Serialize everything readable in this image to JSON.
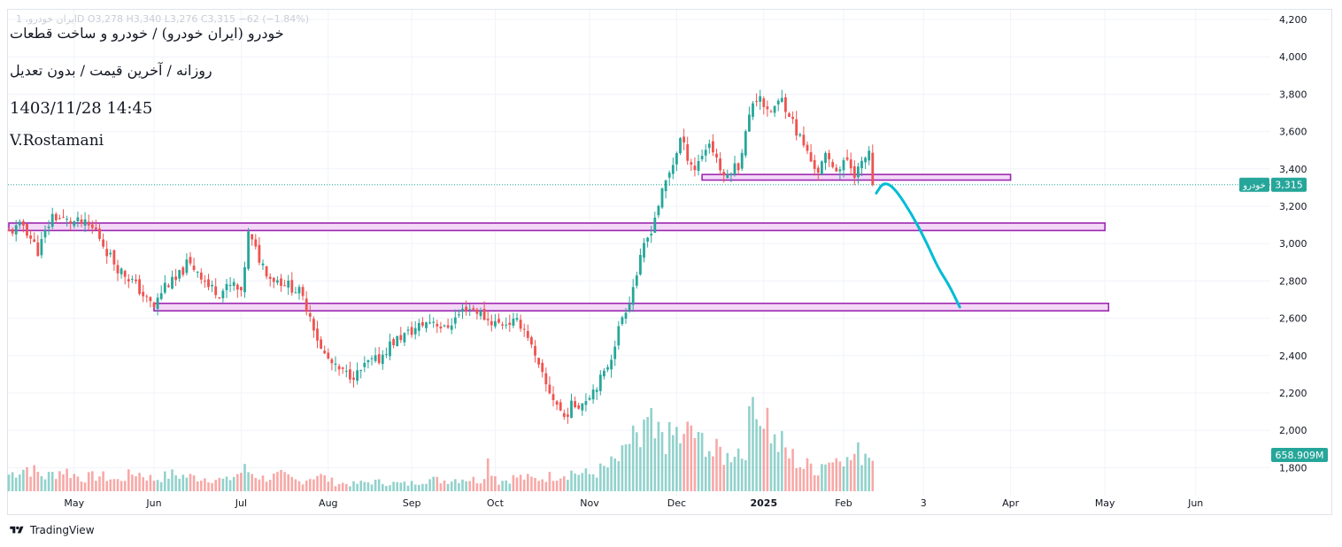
{
  "header": {
    "ohlc_text": "ایران خودرو، 1D  O3,278  H3,340  L3,276  C3,315  −62 (−1.84%)",
    "symbol_title": "خودرو (ایران خودرو) / خودرو و ساخت قطعات",
    "subtitle": "روزانه / آخرین قیمت / بدون تعدیل",
    "datetime": "1403/11/28 14:45",
    "author": "V.Rostamani"
  },
  "branding": {
    "name": "TradingView"
  },
  "colors": {
    "up": "#26a69a",
    "down": "#ef5350",
    "zone_border": "#9c27b0",
    "zone_fill": "#f3d9f7",
    "projection": "#00bcd4",
    "price_tag": "#26a69a"
  },
  "chart_data": {
    "type": "candlestick",
    "title": "خودرو (ایران خودرو) / خودرو و ساخت قطعات",
    "timeframe": "روزانه",
    "y_range": [
      1730,
      4250
    ],
    "y_ticks": [
      1800,
      2000,
      2200,
      2400,
      2600,
      2800,
      3000,
      3200,
      3400,
      3600,
      3800,
      4000,
      4200
    ],
    "y_tick_labels": [
      "1,800",
      "2,000",
      "2,200",
      "2,400",
      "2,600",
      "2,800",
      "3,000",
      "3,200",
      "3,400",
      "3,600",
      "3,800",
      "4,000",
      "4,200"
    ],
    "x_labels": [
      "May",
      "Jun",
      "Jul",
      "Aug",
      "Sep",
      "Oct",
      "Nov",
      "Dec",
      "2025",
      "Feb",
      "3",
      "Apr",
      "May",
      "Jun"
    ],
    "x_label_bar_index": [
      18,
      40,
      64,
      88,
      111,
      134,
      160,
      184,
      208,
      230,
      252,
      276,
      302,
      327
    ],
    "bold_x_label": "2025",
    "last_price": {
      "value": 3315,
      "label": "3,315",
      "symbol": "خودرو"
    },
    "volume_last": {
      "label": "658.909M"
    },
    "close_path": [
      [
        0,
        3060
      ],
      [
        4,
        3100
      ],
      [
        8,
        2960
      ],
      [
        12,
        3150
      ],
      [
        16,
        3120
      ],
      [
        20,
        3110
      ],
      [
        24,
        3070
      ],
      [
        27,
        2960
      ],
      [
        30,
        2870
      ],
      [
        34,
        2800
      ],
      [
        38,
        2700
      ],
      [
        40,
        2660
      ],
      [
        43,
        2780
      ],
      [
        46,
        2800
      ],
      [
        49,
        2890
      ],
      [
        52,
        2860
      ],
      [
        55,
        2770
      ],
      [
        58,
        2740
      ],
      [
        62,
        2780
      ],
      [
        64,
        2720
      ],
      [
        66,
        3050
      ],
      [
        69,
        2920
      ],
      [
        72,
        2820
      ],
      [
        76,
        2790
      ],
      [
        80,
        2740
      ],
      [
        83,
        2620
      ],
      [
        86,
        2430
      ],
      [
        90,
        2330
      ],
      [
        93,
        2300
      ],
      [
        96,
        2300
      ],
      [
        99,
        2360
      ],
      [
        102,
        2380
      ],
      [
        105,
        2460
      ],
      [
        108,
        2500
      ],
      [
        111,
        2530
      ],
      [
        114,
        2570
      ],
      [
        117,
        2590
      ],
      [
        120,
        2540
      ],
      [
        123,
        2600
      ],
      [
        126,
        2660
      ],
      [
        129,
        2640
      ],
      [
        132,
        2590
      ],
      [
        135,
        2570
      ],
      [
        138,
        2580
      ],
      [
        141,
        2570
      ],
      [
        143,
        2510
      ],
      [
        145,
        2380
      ],
      [
        148,
        2240
      ],
      [
        151,
        2140
      ],
      [
        153,
        2070
      ],
      [
        155,
        2130
      ],
      [
        158,
        2150
      ],
      [
        161,
        2220
      ],
      [
        164,
        2300
      ],
      [
        166,
        2400
      ],
      [
        169,
        2610
      ],
      [
        171,
        2700
      ],
      [
        173,
        2840
      ],
      [
        175,
        2980
      ],
      [
        177,
        3080
      ],
      [
        179,
        3210
      ],
      [
        181,
        3330
      ],
      [
        183,
        3430
      ],
      [
        185,
        3560
      ],
      [
        187,
        3470
      ],
      [
        189,
        3400
      ],
      [
        191,
        3480
      ],
      [
        193,
        3540
      ],
      [
        195,
        3460
      ],
      [
        197,
        3340
      ],
      [
        199,
        3400
      ],
      [
        201,
        3420
      ],
      [
        203,
        3590
      ],
      [
        205,
        3760
      ],
      [
        207,
        3800
      ],
      [
        209,
        3690
      ],
      [
        211,
        3730
      ],
      [
        213,
        3770
      ],
      [
        215,
        3700
      ],
      [
        217,
        3600
      ],
      [
        219,
        3530
      ],
      [
        221,
        3440
      ],
      [
        223,
        3390
      ],
      [
        225,
        3460
      ],
      [
        227,
        3420
      ],
      [
        229,
        3400
      ],
      [
        231,
        3450
      ],
      [
        233,
        3380
      ],
      [
        235,
        3420
      ],
      [
        237,
        3500
      ],
      [
        238,
        3315
      ]
    ],
    "volume_path": [
      [
        0,
        14
      ],
      [
        5,
        20
      ],
      [
        10,
        12
      ],
      [
        15,
        18
      ],
      [
        20,
        11
      ],
      [
        25,
        13
      ],
      [
        30,
        9
      ],
      [
        35,
        16
      ],
      [
        40,
        10
      ],
      [
        45,
        14
      ],
      [
        50,
        12
      ],
      [
        55,
        11
      ],
      [
        60,
        9
      ],
      [
        65,
        18
      ],
      [
        70,
        11
      ],
      [
        75,
        13
      ],
      [
        80,
        8
      ],
      [
        85,
        14
      ],
      [
        90,
        7
      ],
      [
        95,
        6
      ],
      [
        100,
        8
      ],
      [
        105,
        7
      ],
      [
        110,
        6
      ],
      [
        115,
        10
      ],
      [
        120,
        9
      ],
      [
        125,
        11
      ],
      [
        130,
        9
      ],
      [
        132,
        25
      ],
      [
        135,
        8
      ],
      [
        140,
        12
      ],
      [
        145,
        10
      ],
      [
        150,
        13
      ],
      [
        155,
        16
      ],
      [
        160,
        14
      ],
      [
        165,
        20
      ],
      [
        170,
        30
      ],
      [
        172,
        55
      ],
      [
        174,
        30
      ],
      [
        176,
        60
      ],
      [
        178,
        40
      ],
      [
        180,
        52
      ],
      [
        182,
        42
      ],
      [
        184,
        48
      ],
      [
        186,
        40
      ],
      [
        188,
        55
      ],
      [
        190,
        38
      ],
      [
        192,
        45
      ],
      [
        194,
        30
      ],
      [
        196,
        33
      ],
      [
        198,
        28
      ],
      [
        200,
        38
      ],
      [
        202,
        32
      ],
      [
        204,
        52
      ],
      [
        205,
        78
      ],
      [
        206,
        96
      ],
      [
        207,
        60
      ],
      [
        208,
        70
      ],
      [
        209,
        62
      ],
      [
        211,
        40
      ],
      [
        213,
        38
      ],
      [
        215,
        30
      ],
      [
        217,
        26
      ],
      [
        219,
        20
      ],
      [
        221,
        22
      ],
      [
        223,
        18
      ],
      [
        225,
        28
      ],
      [
        227,
        24
      ],
      [
        229,
        40
      ],
      [
        231,
        24
      ],
      [
        233,
        30
      ],
      [
        235,
        32
      ],
      [
        237,
        36
      ],
      [
        238,
        28
      ]
    ],
    "zones": [
      {
        "name": "resistance-zone-3370",
        "from_bar": 191,
        "to_bar": 276,
        "low": 3340,
        "high": 3370
      },
      {
        "name": "support-zone-3100",
        "from_bar": 0,
        "to_bar": 302,
        "low": 3070,
        "high": 3110
      },
      {
        "name": "support-zone-2670",
        "from_bar": 40,
        "to_bar": 303,
        "low": 2640,
        "high": 2680
      }
    ],
    "projection": [
      [
        239,
        3270
      ],
      [
        241,
        3330
      ],
      [
        244,
        3300
      ],
      [
        249,
        3150
      ],
      [
        253,
        3000
      ],
      [
        256,
        2870
      ],
      [
        259,
        2780
      ],
      [
        262,
        2660
      ]
    ]
  }
}
